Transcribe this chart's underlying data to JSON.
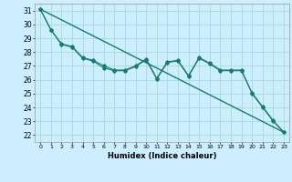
{
  "title": "",
  "xlabel": "Humidex (Indice chaleur)",
  "background_color": "#cceeff",
  "grid_color": "#aadddd",
  "line_color": "#1a7a6e",
  "xlim": [
    -0.5,
    23.5
  ],
  "ylim": [
    21.5,
    31.5
  ],
  "yticks": [
    22,
    23,
    24,
    25,
    26,
    27,
    28,
    29,
    30,
    31
  ],
  "xticks": [
    0,
    1,
    2,
    3,
    4,
    5,
    6,
    7,
    8,
    9,
    10,
    11,
    12,
    13,
    14,
    15,
    16,
    17,
    18,
    19,
    20,
    21,
    22,
    23
  ],
  "trend_x": [
    0,
    23
  ],
  "trend_y": [
    31.1,
    22.2
  ],
  "series1_x": [
    0,
    1,
    2,
    3,
    4,
    5,
    6,
    7,
    8,
    9,
    10,
    11,
    12,
    13,
    14,
    15,
    16,
    17,
    18,
    19,
    20,
    21,
    22,
    23
  ],
  "series1_y": [
    31.1,
    29.6,
    28.55,
    28.35,
    27.55,
    27.35,
    26.85,
    26.65,
    26.65,
    26.95,
    27.45,
    26.05,
    27.25,
    27.35,
    26.25,
    27.55,
    27.15,
    26.65,
    26.65,
    26.65,
    25.05,
    24.05,
    23.05,
    22.2
  ],
  "series2_x": [
    0,
    1,
    2,
    3,
    4,
    5,
    6,
    7,
    8,
    9,
    10,
    11,
    12,
    13,
    14,
    15,
    16,
    17,
    18,
    19,
    20,
    21,
    22,
    23
  ],
  "series2_y": [
    31.1,
    29.6,
    28.6,
    28.4,
    27.6,
    27.4,
    27.0,
    26.7,
    26.7,
    27.0,
    27.5,
    26.1,
    27.3,
    27.4,
    26.3,
    27.6,
    27.2,
    26.7,
    26.7,
    26.7,
    25.0,
    24.0,
    23.0,
    22.2
  ]
}
